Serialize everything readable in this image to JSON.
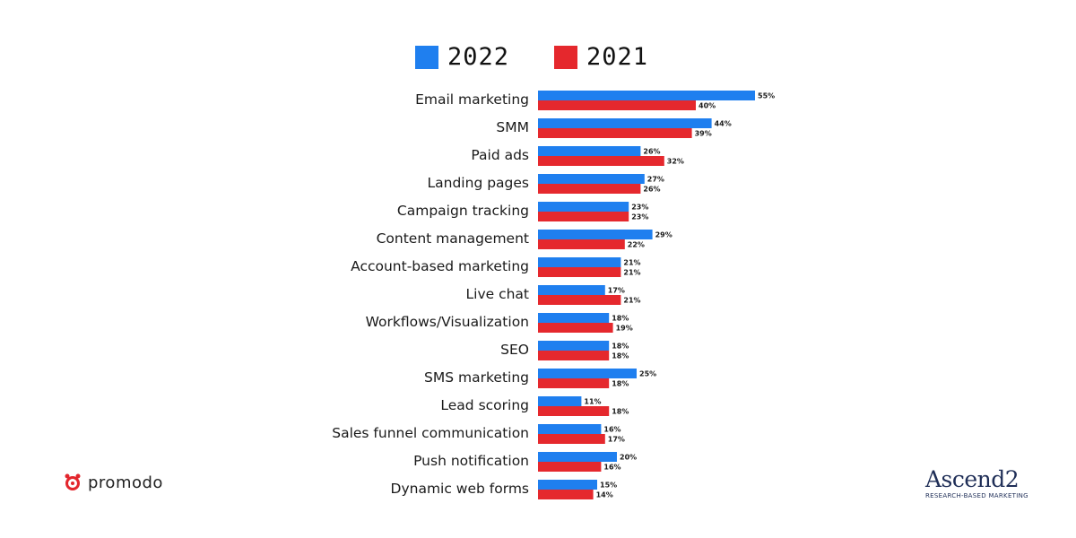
{
  "legend": [
    {
      "label": "2022",
      "color": "#1f7fef"
    },
    {
      "label": "2021",
      "color": "#e5282d"
    }
  ],
  "brand_left": {
    "name": "promodo",
    "icon": "promodo-logo-icon",
    "color": "#e3262d"
  },
  "brand_right": {
    "name": "Ascend2",
    "tagline": "RESEARCH-BASED MARKETING"
  },
  "chart_data": {
    "type": "bar",
    "orientation": "horizontal",
    "title": "",
    "xlabel": "",
    "ylabel": "",
    "value_suffix": "%",
    "xlim": [
      0,
      60
    ],
    "grid": false,
    "legend_position": "top",
    "categories": [
      "Email marketing",
      "SMM",
      "Paid ads",
      "Landing pages",
      "Campaign tracking",
      "Content management",
      "Account-based marketing",
      "Live chat",
      "Workflows/Visualization",
      "SEO",
      "SMS marketing",
      "Lead scoring",
      "Sales funnel communication",
      "Push notification",
      "Dynamic web forms"
    ],
    "series": [
      {
        "name": "2022",
        "color": "#1f7fef",
        "values": [
          55,
          44,
          26,
          27,
          23,
          29,
          21,
          17,
          18,
          18,
          25,
          11,
          16,
          20,
          15
        ]
      },
      {
        "name": "2021",
        "color": "#e5282d",
        "values": [
          40,
          39,
          32,
          26,
          23,
          22,
          21,
          21,
          19,
          18,
          18,
          18,
          17,
          16,
          14
        ]
      }
    ]
  }
}
